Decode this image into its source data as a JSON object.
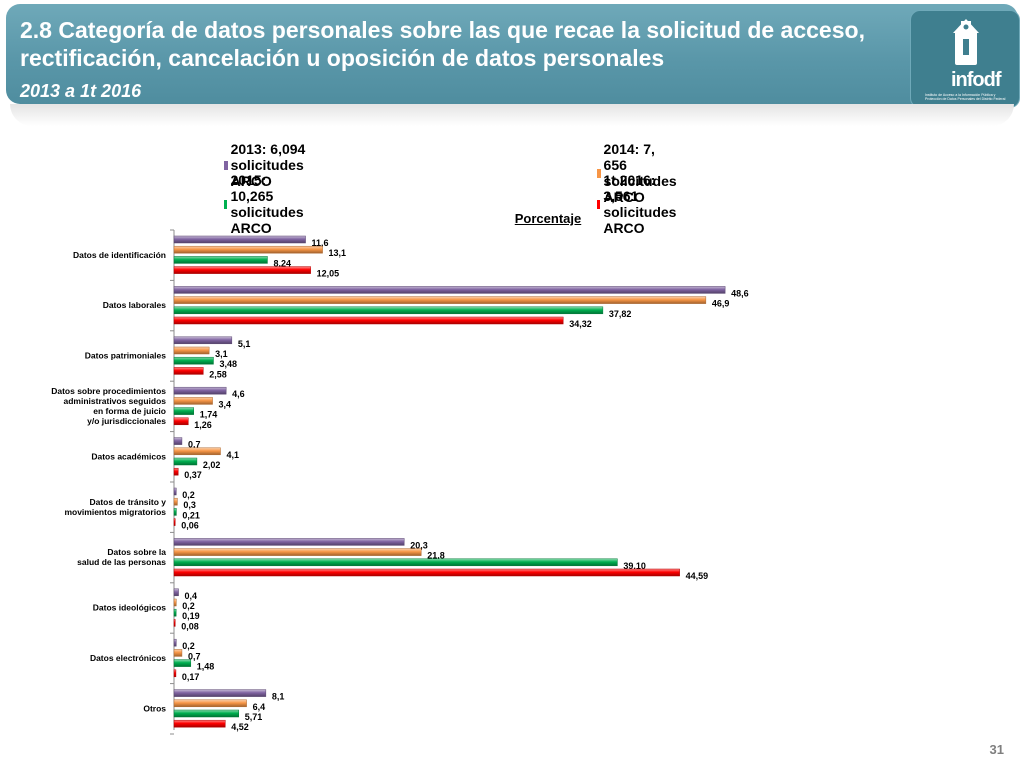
{
  "header": {
    "title": "2.8 Categoría de datos personales sobre las que recae la solicitud de acceso, rectificación, cancelación u oposición de datos personales",
    "subtitle": "2013 a 1t 2016",
    "logo_text": "infodf",
    "logo_small_text": "Instituto de Acceso a la Información Pública y Protección de Datos Personales del Distrito Federal"
  },
  "page_number": "31",
  "colors": {
    "header": "#5a97a9",
    "series_2013": "#8064a2",
    "series_2014": "#f79646",
    "series_2015": "#00b050",
    "series_2016": "#ff0000"
  },
  "chart_data": {
    "type": "bar",
    "orientation": "horizontal",
    "title": "Porcentaje",
    "xlim": [
      0,
      55
    ],
    "grid": false,
    "legend_position": "top",
    "categories": [
      "Datos de identificación",
      "Datos laborales",
      "Datos patrimoniales",
      "Datos sobre procedimientos administrativos seguidos en forma de juicio y/o jurisdiccionales",
      "Datos académicos",
      "Datos de tránsito y movimientos migratorios",
      "Datos sobre la salud de las personas",
      "Datos ideológicos",
      "Datos electrónicos",
      "Otros"
    ],
    "category_lines": [
      [
        "Datos de identificación"
      ],
      [
        "Datos laborales"
      ],
      [
        "Datos patrimoniales"
      ],
      [
        "Datos sobre procedimientos",
        "administrativos seguidos",
        "en forma de juicio",
        "y/o jurisdiccionales"
      ],
      [
        "Datos académicos"
      ],
      [
        "Datos de tránsito y",
        "movimientos migratorios"
      ],
      [
        "Datos sobre la",
        "salud de las personas"
      ],
      [
        "Datos ideológicos"
      ],
      [
        "Datos electrónicos"
      ],
      [
        "Otros"
      ]
    ],
    "series": [
      {
        "name": "2013: 6,094 solicitudes ARCO",
        "color": "#8064a2",
        "values": [
          11.6,
          48.6,
          5.1,
          4.6,
          0.7,
          0.2,
          20.3,
          0.4,
          0.2,
          8.1
        ],
        "labels": [
          "11,6",
          "48,6",
          "5,1",
          "4,6",
          "0,7",
          "0,2",
          "20,3",
          "0,4",
          "0,2",
          "8,1"
        ]
      },
      {
        "name": "2014: 7, 656 solicitudes ARCO",
        "color": "#f79646",
        "values": [
          13.1,
          46.9,
          3.1,
          3.4,
          4.1,
          0.3,
          21.8,
          0.2,
          0.7,
          6.4
        ],
        "labels": [
          "13,1",
          "46,9",
          "3,1",
          "3,4",
          "4,1",
          "0,3",
          "21,8",
          "0,2",
          "0,7",
          "6,4"
        ]
      },
      {
        "name": "2015: 10,265 solicitudes ARCO",
        "color": "#00b050",
        "values": [
          8.24,
          37.82,
          3.48,
          1.74,
          2.02,
          0.21,
          39.1,
          0.19,
          1.48,
          5.71
        ],
        "labels": [
          "8,24",
          "37,82",
          "3,48",
          "1,74",
          "2,02",
          "0,21",
          "39,10",
          "0,19",
          "1,48",
          "5,71"
        ]
      },
      {
        "name": "1t 2016: 3,561 solicitudes ARCO",
        "color": "#ff0000",
        "values": [
          12.05,
          34.32,
          2.58,
          1.26,
          0.37,
          0.06,
          44.59,
          0.08,
          0.17,
          4.52
        ],
        "labels": [
          "12,05",
          "34,32",
          "2,58",
          "1,26",
          "0,37",
          "0,06",
          "44,59",
          "0,08",
          "0,17",
          "4,52"
        ]
      }
    ]
  }
}
